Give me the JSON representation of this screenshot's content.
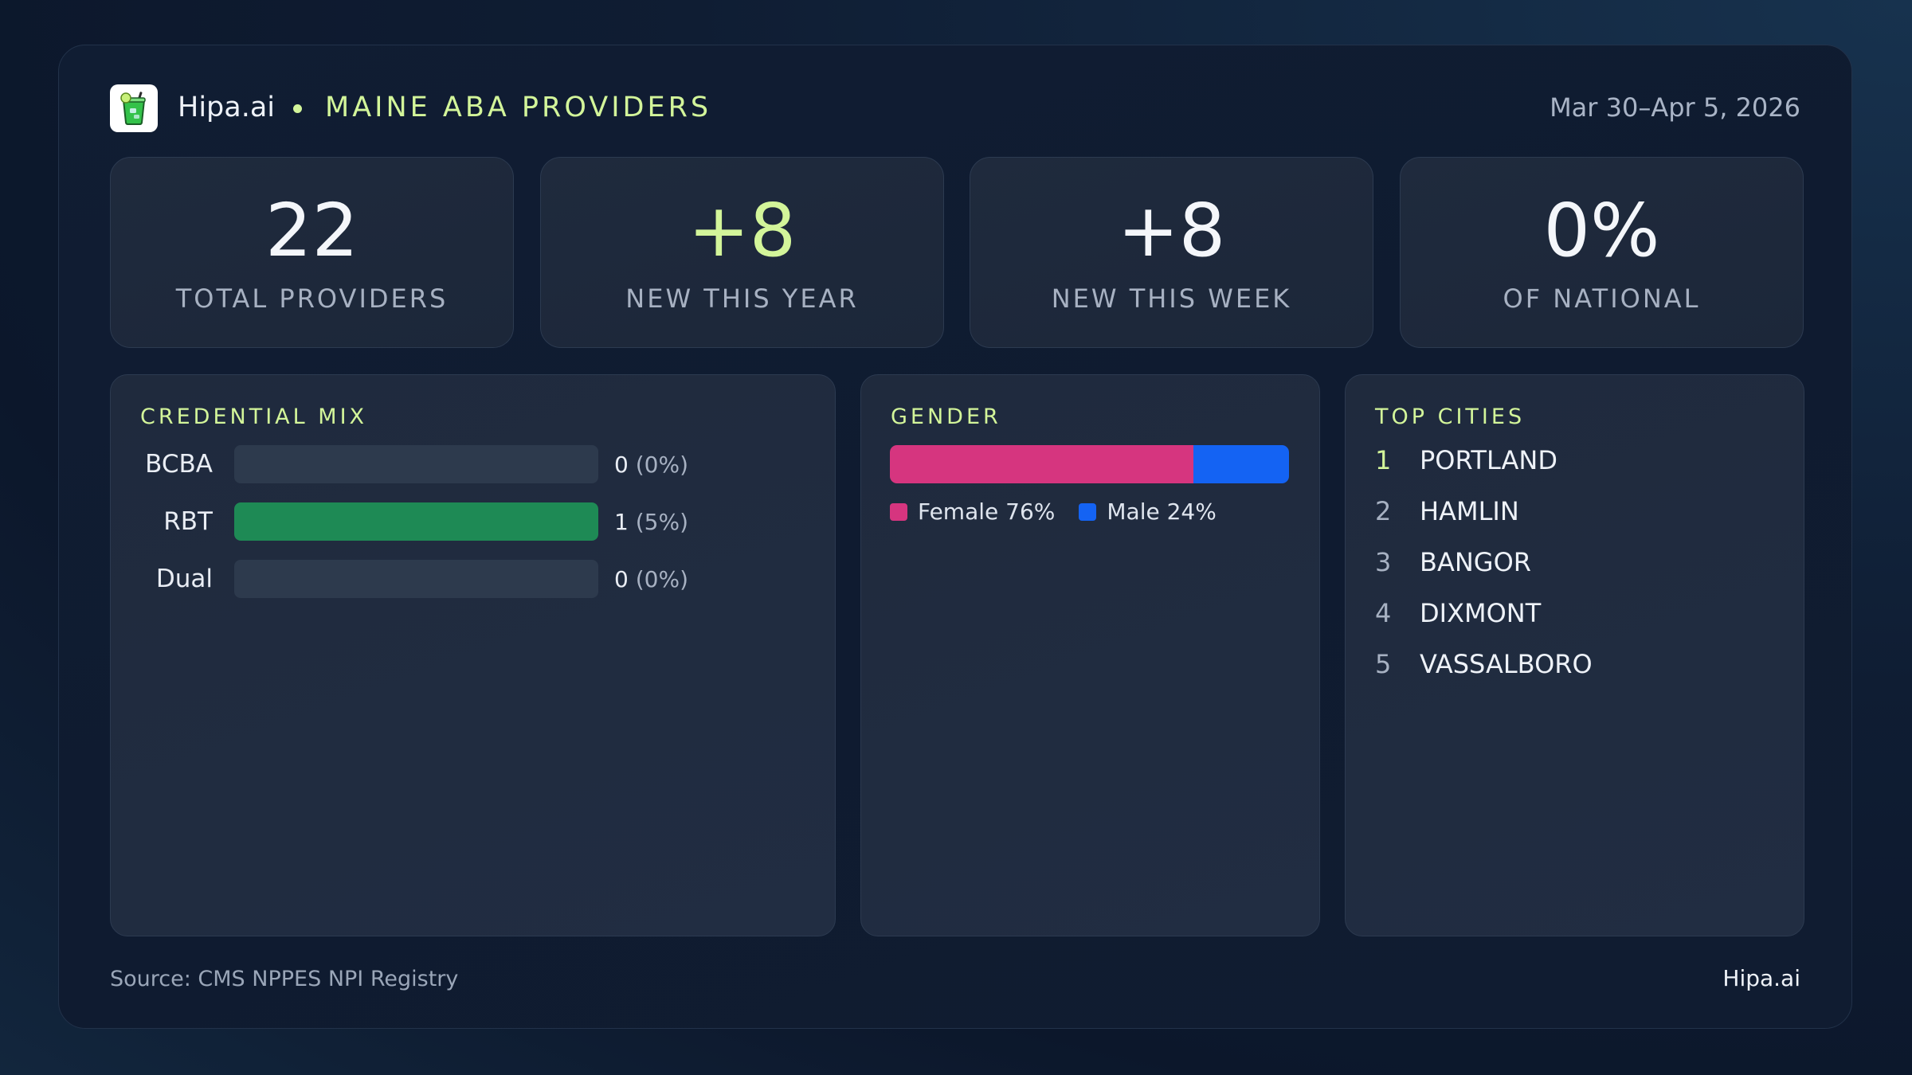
{
  "header": {
    "brand": "Hipa.ai",
    "title": "MAINE ABA PROVIDERS",
    "date_range": "Mar 30–Apr 5, 2026",
    "logo_icon": "drink-cup-icon"
  },
  "stats": [
    {
      "value": "22",
      "label": "TOTAL PROVIDERS"
    },
    {
      "value": "+8",
      "label": "NEW THIS YEAR"
    },
    {
      "value": "+8",
      "label": "NEW THIS WEEK"
    },
    {
      "value": "0%",
      "label": "OF NATIONAL"
    }
  ],
  "credential_mix": {
    "title": "CREDENTIAL MIX",
    "rows": [
      {
        "label": "BCBA",
        "count": "0",
        "pct": "(0%)",
        "fill": 0
      },
      {
        "label": "RBT",
        "count": "1",
        "pct": "(5%)",
        "fill": 1
      },
      {
        "label": "Dual",
        "count": "0",
        "pct": "(0%)",
        "fill": 0
      }
    ],
    "bar_color": "#1e8a55"
  },
  "gender": {
    "title": "GENDER",
    "female_share": 76,
    "male_share": 24,
    "female_label": "Female 76%",
    "male_label": "Male 24%",
    "female_color": "#d6357f",
    "male_color": "#1463f3"
  },
  "top_cities": {
    "title": "TOP CITIES",
    "items": [
      {
        "rank": "1",
        "name": "PORTLAND"
      },
      {
        "rank": "2",
        "name": "HAMLIN"
      },
      {
        "rank": "3",
        "name": "BANGOR"
      },
      {
        "rank": "4",
        "name": "DIXMONT"
      },
      {
        "rank": "5",
        "name": "VASSALBORO"
      }
    ]
  },
  "footer": {
    "source": "Source: CMS NPPES NPI Registry",
    "brand": "Hipa.ai"
  },
  "colors": {
    "accent": "#d3f59a",
    "background": "#0f1b30"
  }
}
